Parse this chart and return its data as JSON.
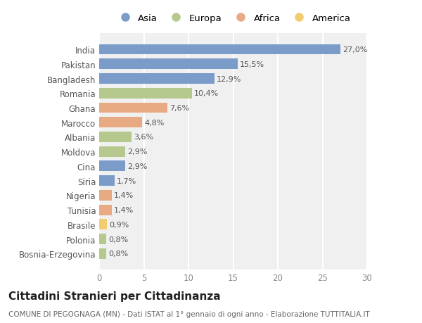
{
  "countries": [
    "Bosnia-Erzegovina",
    "Polonia",
    "Brasile",
    "Tunisia",
    "Nigeria",
    "Siria",
    "Cina",
    "Moldova",
    "Albania",
    "Marocco",
    "Ghana",
    "Romania",
    "Bangladesh",
    "Pakistan",
    "India"
  ],
  "values": [
    0.8,
    0.8,
    0.9,
    1.4,
    1.4,
    1.7,
    2.9,
    2.9,
    3.6,
    4.8,
    7.6,
    10.4,
    12.9,
    15.5,
    27.0
  ],
  "labels": [
    "0,8%",
    "0,8%",
    "0,9%",
    "1,4%",
    "1,4%",
    "1,7%",
    "2,9%",
    "2,9%",
    "3,6%",
    "4,8%",
    "7,6%",
    "10,4%",
    "12,9%",
    "15,5%",
    "27,0%"
  ],
  "continents": [
    "Europa",
    "Europa",
    "America",
    "Africa",
    "Africa",
    "Asia",
    "Asia",
    "Europa",
    "Europa",
    "Africa",
    "Africa",
    "Europa",
    "Asia",
    "Asia",
    "Asia"
  ],
  "colors": {
    "Asia": "#7b9cc9",
    "Europa": "#b5c98e",
    "Africa": "#e8aa82",
    "America": "#f2cc70"
  },
  "legend_order": [
    "Asia",
    "Europa",
    "Africa",
    "America"
  ],
  "title": "Cittadini Stranieri per Cittadinanza",
  "subtitle": "COMUNE DI PEGOGNAGA (MN) - Dati ISTAT al 1° gennaio di ogni anno - Elaborazione TUTTITALIA.IT",
  "xlim": [
    0,
    30
  ],
  "xticks": [
    0,
    5,
    10,
    15,
    20,
    25,
    30
  ],
  "bg_color": "#ffffff",
  "plot_bg_color": "#f0f0f0",
  "grid_color": "#ffffff",
  "bar_height": 0.72,
  "title_fontsize": 11,
  "subtitle_fontsize": 7.5,
  "label_fontsize": 8,
  "tick_fontsize": 8.5,
  "legend_fontsize": 9.5
}
